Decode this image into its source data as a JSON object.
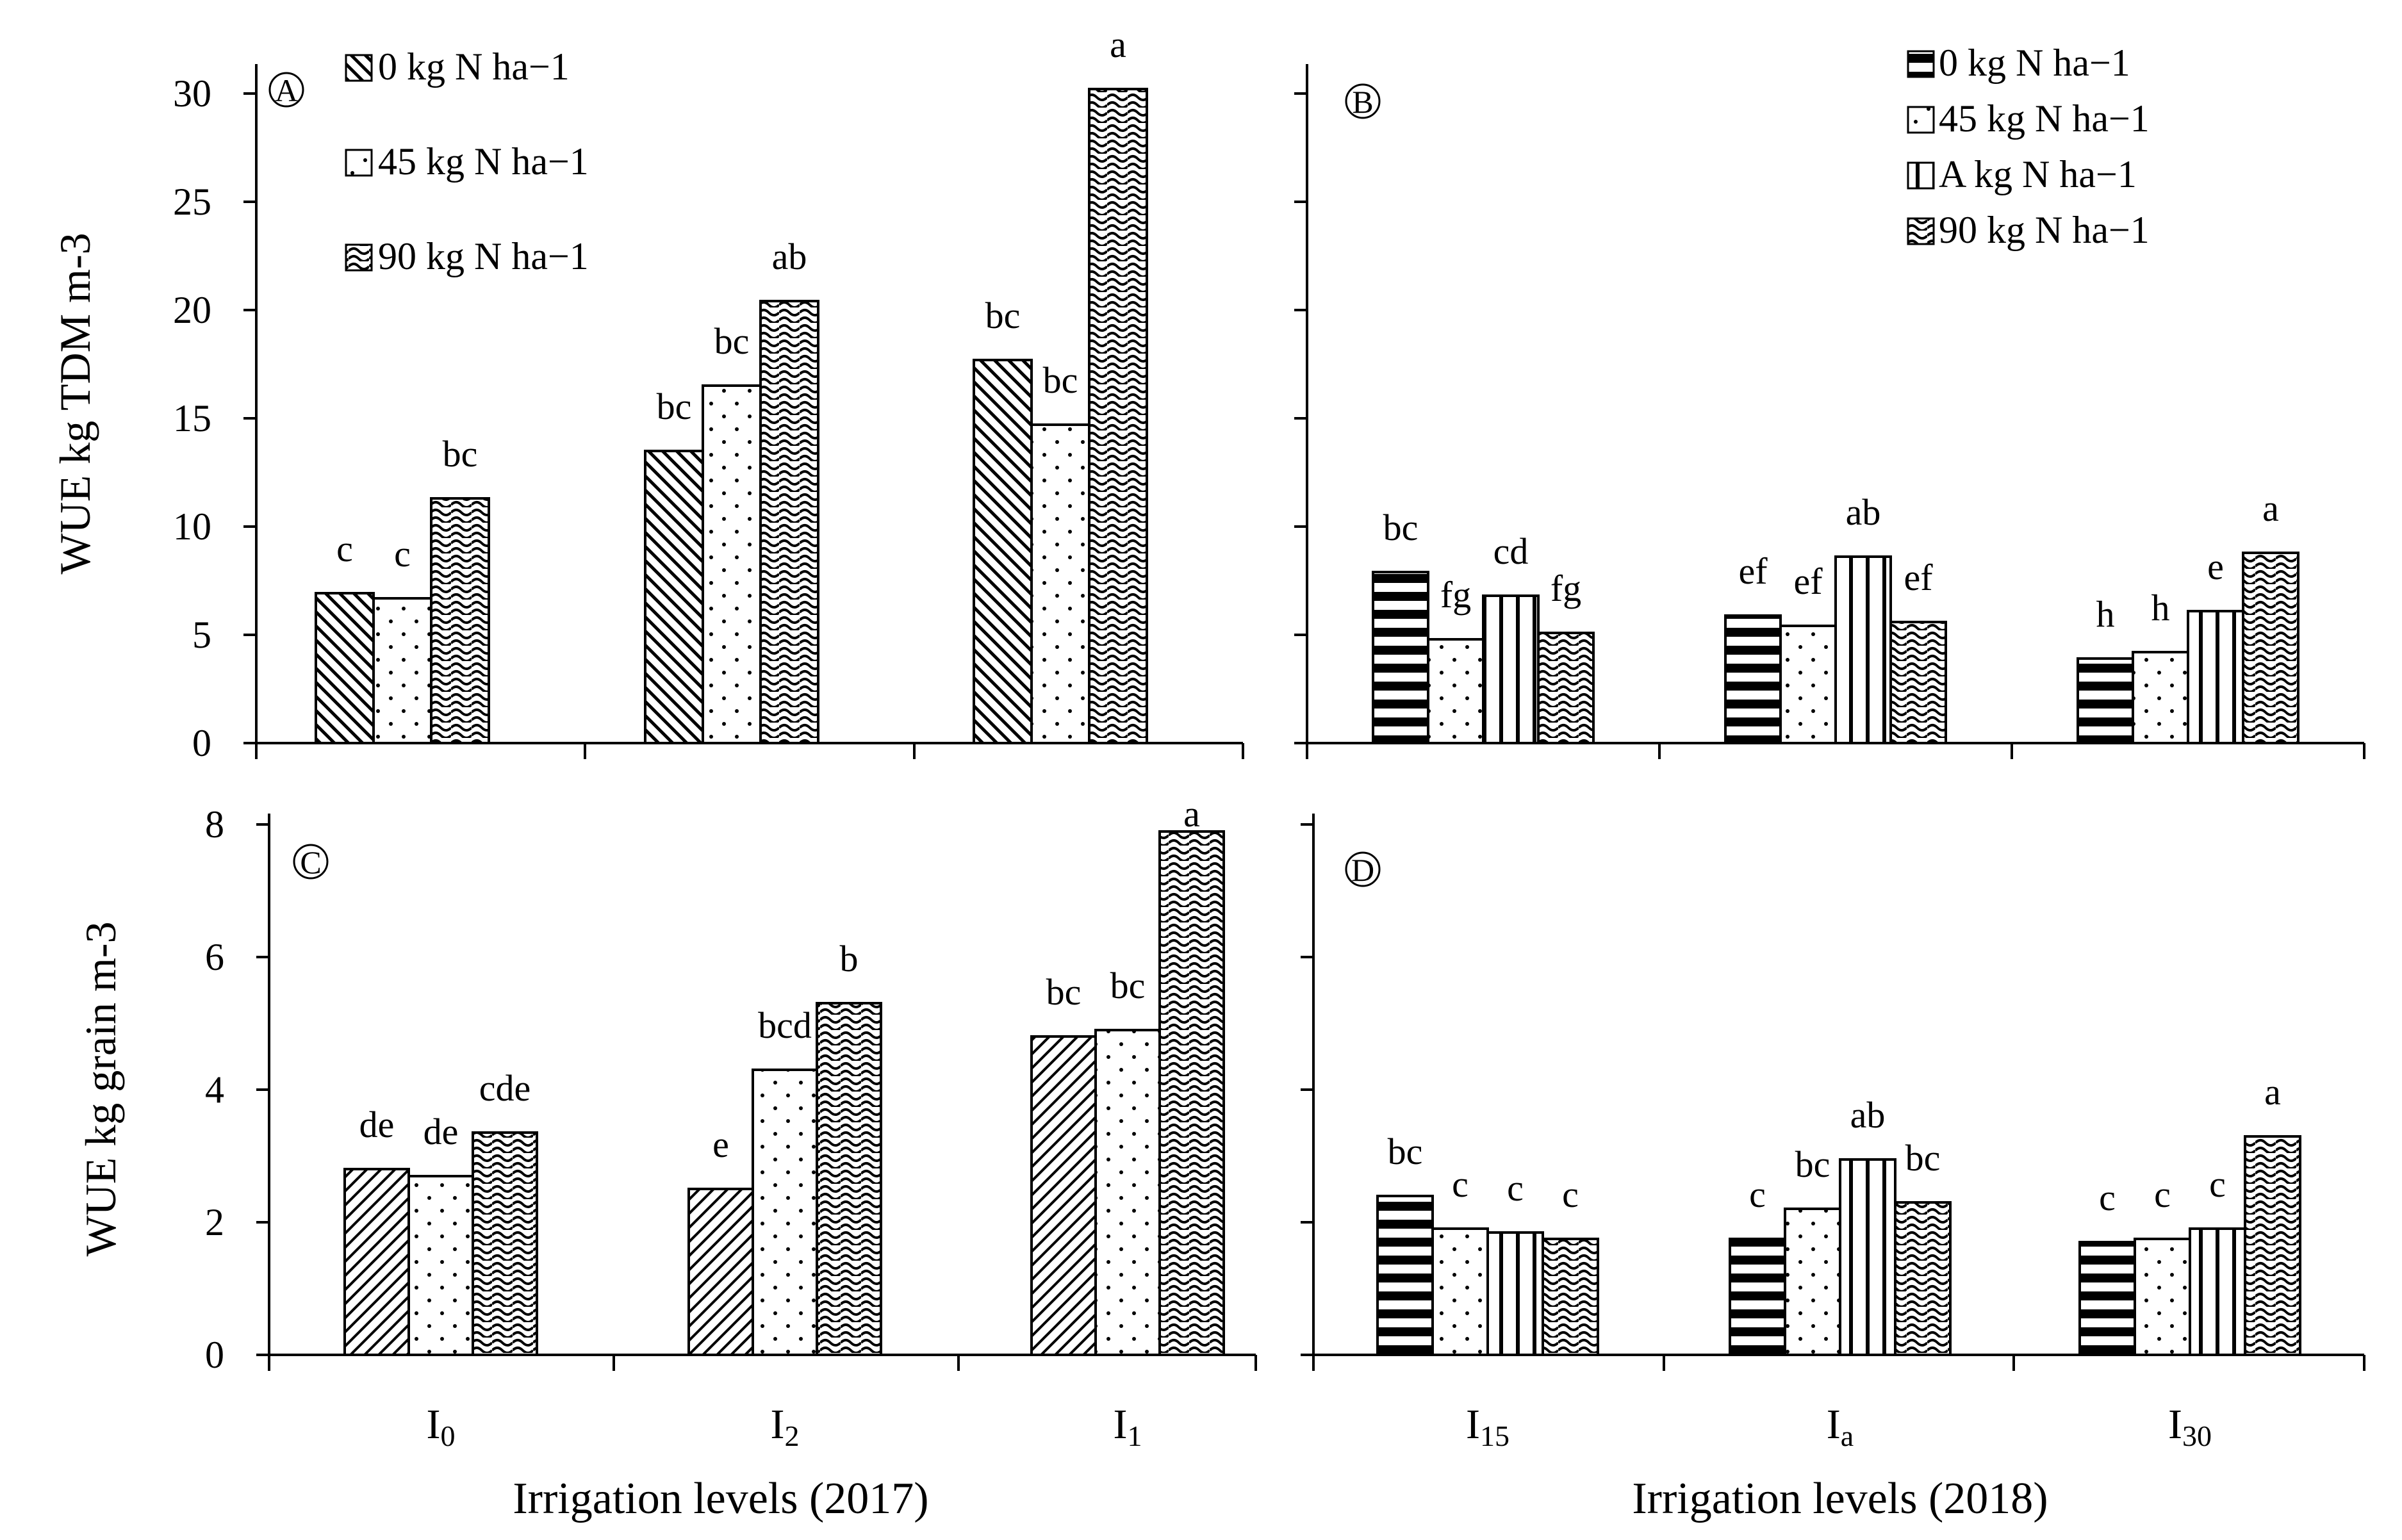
{
  "chart_data": [
    {
      "type": "bar",
      "panel": "A",
      "ylabel": "WUE kg TDM m-3",
      "ylim": [
        0,
        30
      ],
      "yticks": [
        0,
        5,
        10,
        15,
        20,
        25,
        30
      ],
      "categories": [
        "I0",
        "I2",
        "I1"
      ],
      "category_display": [
        {
          "base": "I",
          "sub": "0"
        },
        {
          "base": "I",
          "sub": "2"
        },
        {
          "base": "I",
          "sub": "1"
        }
      ],
      "series": [
        {
          "name": "0 kg N ha−1",
          "pattern": "diagonal-back",
          "values": [
            6.9,
            13.5,
            17.7
          ],
          "labels": [
            "c",
            "bc",
            "bc"
          ]
        },
        {
          "name": "45 kg N ha−1",
          "pattern": "dots",
          "values": [
            6.7,
            16.5,
            14.7
          ],
          "labels": [
            "c",
            "bc",
            "bc"
          ]
        },
        {
          "name": "90 kg N ha−1",
          "pattern": "wave",
          "values": [
            11.3,
            20.4,
            30.2
          ],
          "labels": [
            "bc",
            "ab",
            "a"
          ]
        }
      ],
      "legend_position": "top-left"
    },
    {
      "type": "bar",
      "panel": "B",
      "ylabel": "",
      "ylim": [
        0,
        30
      ],
      "yticks": [
        0,
        5,
        10,
        15,
        20,
        25,
        30
      ],
      "categories": [
        "I15",
        "Ia",
        "I30"
      ],
      "category_display": [
        {
          "base": "I",
          "sub": "15"
        },
        {
          "base": "I",
          "sub": "a"
        },
        {
          "base": "I",
          "sub": "30"
        }
      ],
      "series": [
        {
          "name": "0 kg N ha−1",
          "pattern": "horizontal",
          "values": [
            7.9,
            5.9,
            3.9
          ],
          "labels": [
            "bc",
            "ef",
            "h"
          ]
        },
        {
          "name": "45 kg N ha−1",
          "pattern": "dots",
          "values": [
            4.8,
            5.4,
            4.2
          ],
          "labels": [
            "fg",
            "ef",
            "h"
          ]
        },
        {
          "name": "A kg N ha−1",
          "pattern": "vertical",
          "values": [
            6.8,
            8.6,
            6.1
          ],
          "labels": [
            "cd",
            "ab",
            "e"
          ]
        },
        {
          "name": "90 kg N ha−1",
          "pattern": "wave",
          "values": [
            5.1,
            5.6,
            8.8
          ],
          "labels": [
            "fg",
            "ef",
            "a"
          ]
        }
      ],
      "legend_position": "top-right"
    },
    {
      "type": "bar",
      "panel": "C",
      "ylabel": "WUE kg grain m-3",
      "ylim": [
        0,
        8
      ],
      "yticks": [
        0,
        2,
        4,
        6,
        8
      ],
      "categories": [
        "I0",
        "I2",
        "I1"
      ],
      "category_display": [
        {
          "base": "I",
          "sub": "0"
        },
        {
          "base": "I",
          "sub": "2"
        },
        {
          "base": "I",
          "sub": "1"
        }
      ],
      "series": [
        {
          "name": "0 kg N ha−1",
          "pattern": "diagonal",
          "values": [
            2.8,
            2.5,
            4.8
          ],
          "labels": [
            "de",
            "e",
            "bc"
          ]
        },
        {
          "name": "45 kg N ha−1",
          "pattern": "dots",
          "values": [
            2.7,
            4.3,
            4.9
          ],
          "labels": [
            "de",
            "bcd",
            "bc"
          ]
        },
        {
          "name": "90 kg N ha−1",
          "pattern": "wave",
          "values": [
            3.35,
            5.3,
            7.9
          ],
          "labels": [
            "cde",
            "b",
            "a"
          ]
        }
      ],
      "xlabel": "Irrigation levels (2017)"
    },
    {
      "type": "bar",
      "panel": "D",
      "ylabel": "",
      "ylim": [
        0,
        8
      ],
      "yticks": [
        0,
        2,
        4,
        6,
        8
      ],
      "categories": [
        "I15",
        "Ia",
        "I30"
      ],
      "category_display": [
        {
          "base": "I",
          "sub": "15"
        },
        {
          "base": "I",
          "sub": "a"
        },
        {
          "base": "I",
          "sub": "30"
        }
      ],
      "series": [
        {
          "name": "0 kg N ha−1",
          "pattern": "horizontal",
          "values": [
            2.4,
            1.75,
            1.7
          ],
          "labels": [
            "bc",
            "c",
            "c"
          ]
        },
        {
          "name": "45 kg N ha−1",
          "pattern": "dots",
          "values": [
            1.9,
            2.2,
            1.75
          ],
          "labels": [
            "c",
            "bc",
            "c"
          ]
        },
        {
          "name": "A kg N ha−1",
          "pattern": "vertical",
          "values": [
            1.85,
            2.95,
            1.9
          ],
          "labels": [
            "c",
            "ab",
            "c"
          ]
        },
        {
          "name": "90 kg N ha−1",
          "pattern": "wave",
          "values": [
            1.75,
            2.3,
            3.3
          ],
          "labels": [
            "c",
            "bc",
            "a"
          ]
        }
      ],
      "xlabel": "Irrigation levels (2018)"
    }
  ]
}
